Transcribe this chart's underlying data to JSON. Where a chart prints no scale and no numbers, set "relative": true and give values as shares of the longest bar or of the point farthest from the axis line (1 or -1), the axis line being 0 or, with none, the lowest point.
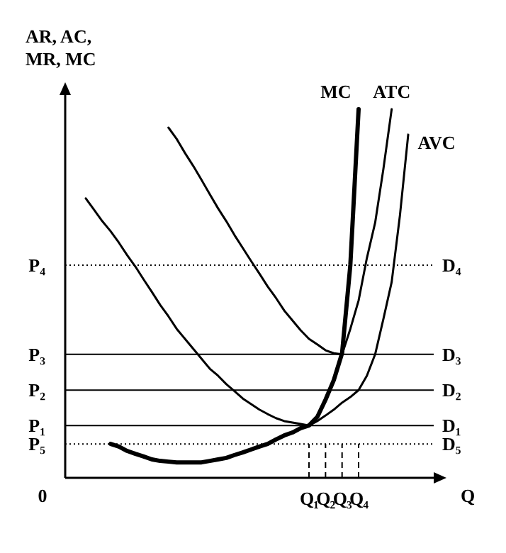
{
  "chart_data": {
    "type": "line",
    "relative": true,
    "ylabel": "AR, AC, MR, MC",
    "xlabel": "Q",
    "categories": [
      null,
      null,
      null,
      null,
      null,
      null,
      null,
      null,
      null,
      null,
      null,
      null,
      null,
      null,
      null,
      null,
      null,
      null,
      null,
      null,
      null,
      null,
      null,
      null,
      null,
      null,
      null,
      null,
      "Q₁",
      null,
      "Q₂",
      null,
      "Q₃",
      null,
      "Q₄",
      null,
      null,
      null,
      null,
      null,
      null,
      null,
      null,
      null
    ],
    "legend": false,
    "marker": "none",
    "series": [
      {
        "name": "MC",
        "color": "#000000",
        "values": [
          null,
          null,
          null,
          null,
          0.092,
          0.085,
          0.073,
          0.065,
          0.058,
          0.05,
          0.046,
          0.044,
          0.042,
          0.042,
          0.042,
          0.042,
          0.046,
          0.05,
          0.054,
          0.062,
          0.069,
          0.077,
          0.085,
          0.092,
          0.104,
          0.115,
          0.123,
          0.135,
          0.142,
          0.165,
          0.212,
          0.265,
          0.338,
          0.577,
          1,
          null,
          null,
          null,
          null,
          null,
          null,
          null,
          null,
          null
        ]
      },
      {
        "name": "ATC",
        "color": "#000000",
        "values": [
          null,
          null,
          null,
          null,
          null,
          null,
          null,
          null,
          null,
          null,
          null,
          0.95,
          0.919,
          0.881,
          0.846,
          0.808,
          0.769,
          0.731,
          0.696,
          0.658,
          0.623,
          0.588,
          0.554,
          0.519,
          0.488,
          0.454,
          0.427,
          0.4,
          0.377,
          0.362,
          0.346,
          0.338,
          0.335,
          0.404,
          0.481,
          0.596,
          0.692,
          0.838,
          1,
          null,
          null,
          null,
          null,
          null
        ]
      },
      {
        "name": "AVC",
        "color": "#000000",
        "values": [
          null,
          0.758,
          0.727,
          0.696,
          0.669,
          0.638,
          0.604,
          0.573,
          0.538,
          0.504,
          0.469,
          0.438,
          0.404,
          0.377,
          0.35,
          0.323,
          0.296,
          0.277,
          0.254,
          0.235,
          0.215,
          0.2,
          0.185,
          0.173,
          0.162,
          0.154,
          0.15,
          0.146,
          0.142,
          0.154,
          0.169,
          0.185,
          0.204,
          0.219,
          0.238,
          0.277,
          0.335,
          0.431,
          0.531,
          0.712,
          0.931,
          null,
          null,
          null
        ]
      }
    ],
    "annotations": [
      "0",
      "P₄",
      "P₃",
      "P₂",
      "P₁",
      "P₅"
    ],
    "ref_lines": [
      {
        "axis": "y",
        "value": 0.577,
        "label": "D₄",
        "line_style": "dotted",
        "color": "#000000"
      },
      {
        "axis": "y",
        "value": 0.335,
        "label": "D₃",
        "line_style": "solid",
        "color": "#000000"
      },
      {
        "axis": "y",
        "value": 0.238,
        "label": "D₂",
        "line_style": "solid",
        "color": "#000000"
      },
      {
        "axis": "y",
        "value": 0.142,
        "label": "D₁",
        "line_style": "solid",
        "color": "#000000"
      },
      {
        "axis": "y",
        "value": 0.092,
        "label": "D₅",
        "line_style": "dotted",
        "color": "#000000"
      }
    ]
  }
}
